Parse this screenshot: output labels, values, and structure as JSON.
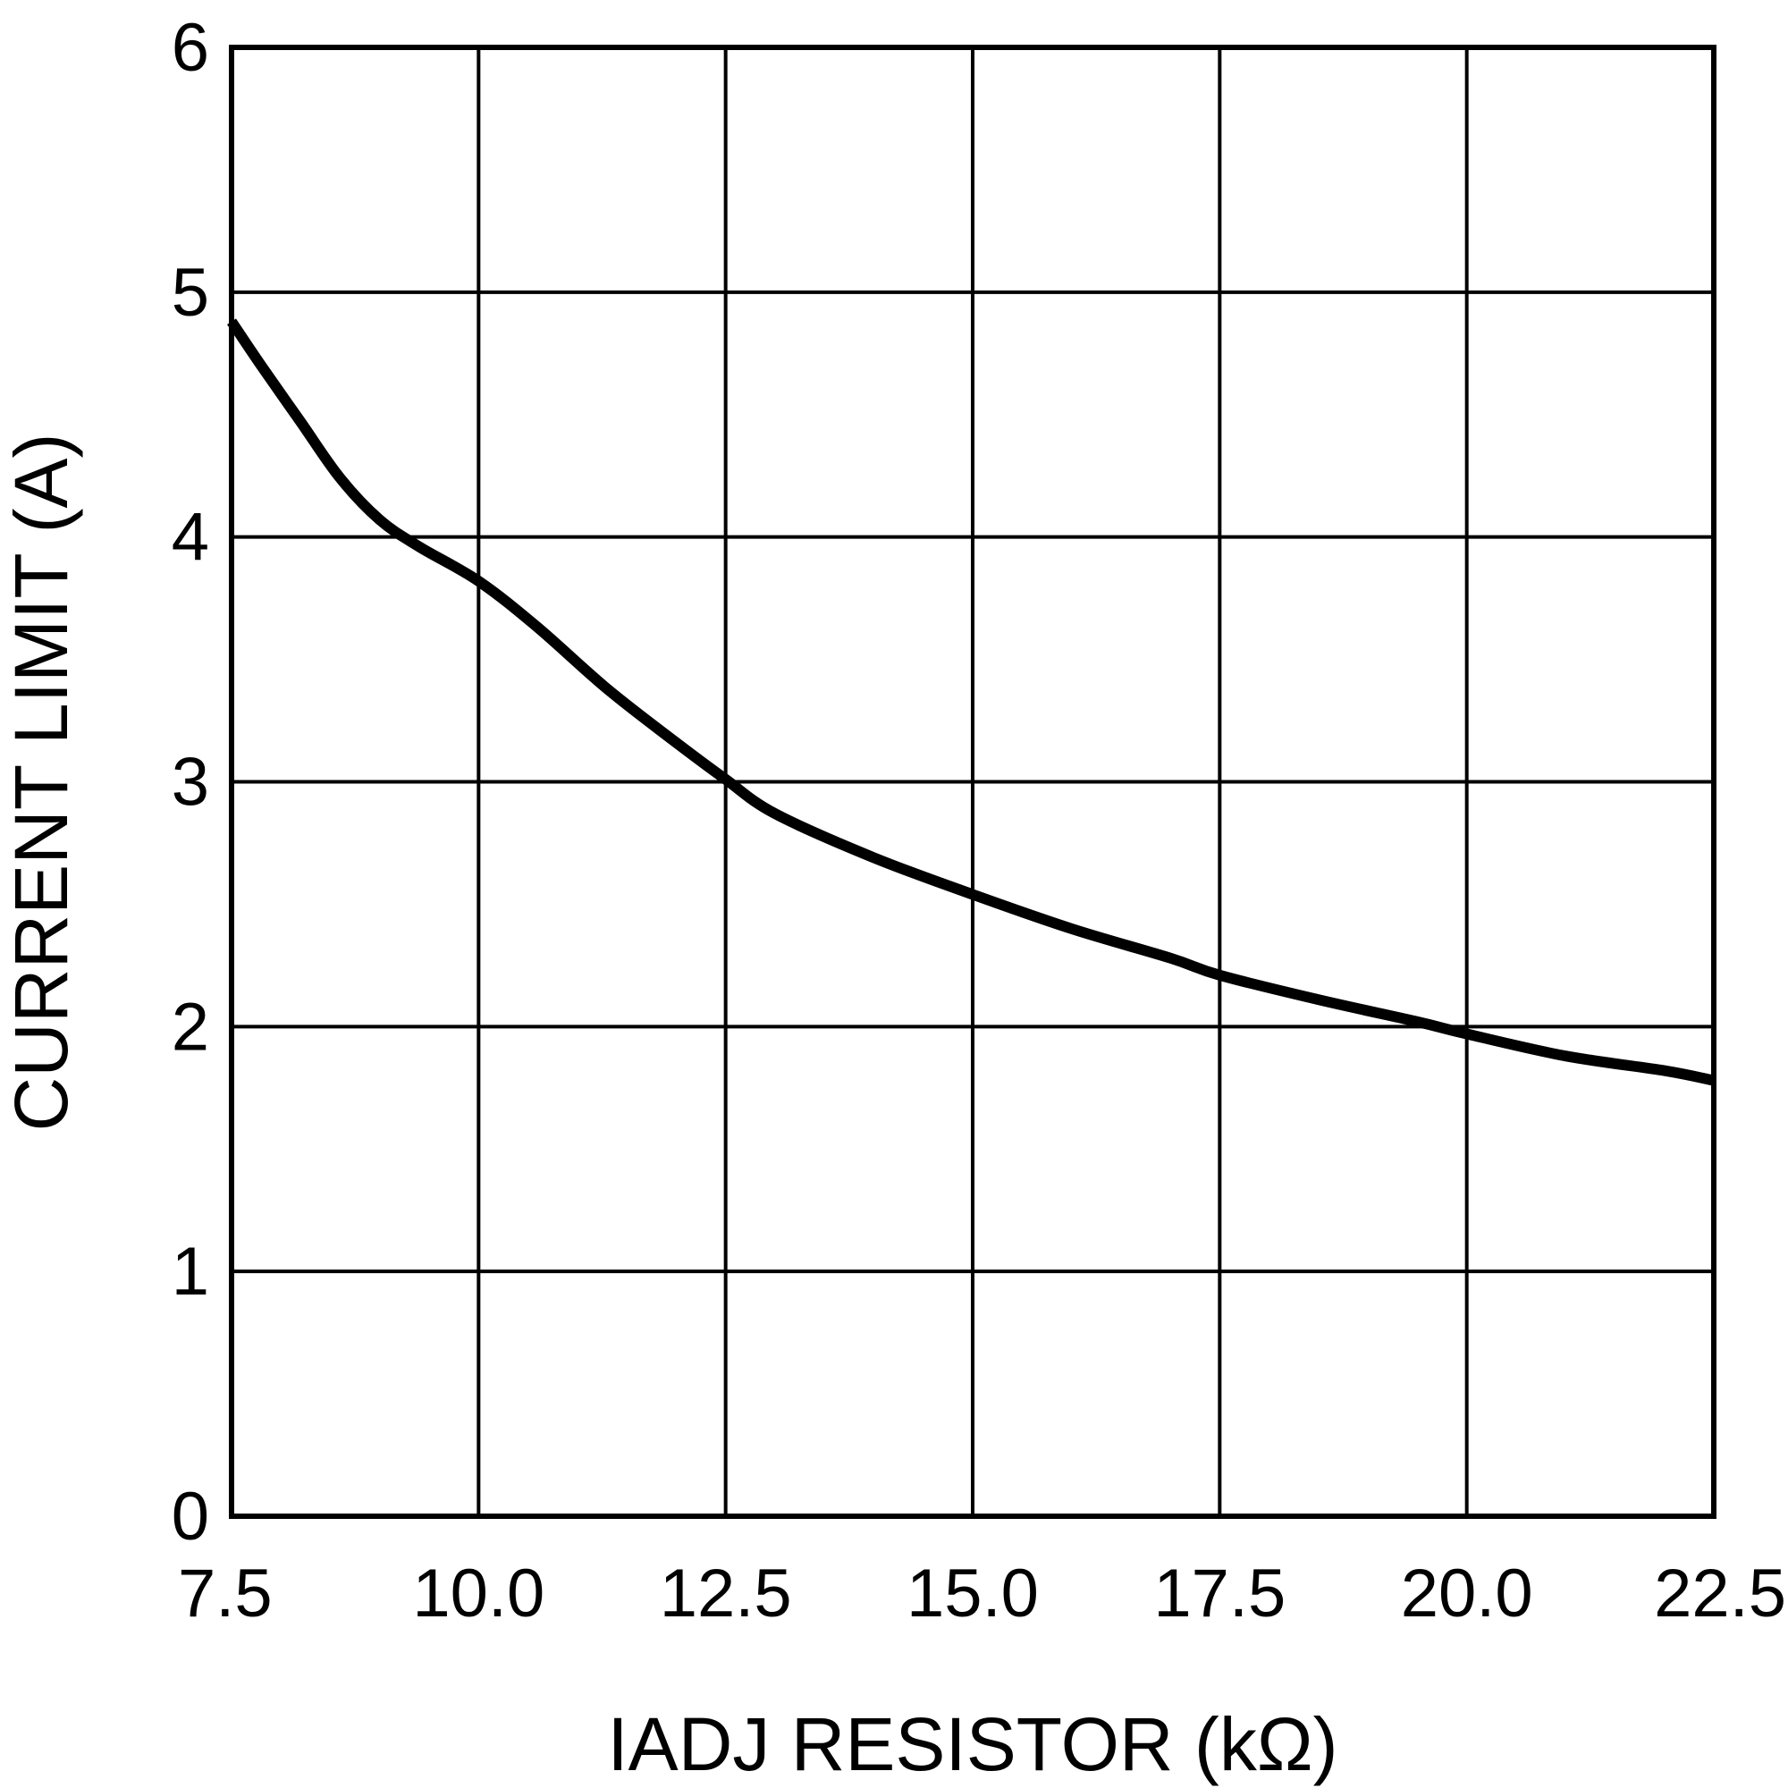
{
  "chart_data": {
    "type": "line",
    "xlabel": "IADJ RESISTOR (kΩ)",
    "ylabel": "CURRENT LIMIT (A)",
    "xlim": [
      7.5,
      22.5
    ],
    "ylim": [
      0,
      6
    ],
    "x_ticks": [
      "7.5",
      "10.0",
      "12.5",
      "15.0",
      "17.5",
      "20.0",
      "22.5"
    ],
    "y_ticks": [
      "0",
      "1",
      "2",
      "3",
      "4",
      "5",
      "6"
    ],
    "grid": true,
    "series": [
      {
        "color": "#000000",
        "x": [
          7.5,
          7.8,
          8.2,
          8.6,
          9.0,
          9.4,
          10.0,
          10.6,
          11.3,
          12.0,
          12.5,
          13.0,
          14.0,
          15.0,
          16.0,
          17.0,
          17.5,
          18.5,
          19.5,
          20.0,
          21.0,
          22.0,
          22.5
        ],
        "y": [
          4.88,
          4.7,
          4.47,
          4.24,
          4.07,
          3.96,
          3.82,
          3.63,
          3.38,
          3.16,
          3.01,
          2.87,
          2.69,
          2.54,
          2.4,
          2.28,
          2.21,
          2.11,
          2.02,
          1.97,
          1.88,
          1.82,
          1.78
        ]
      }
    ]
  }
}
